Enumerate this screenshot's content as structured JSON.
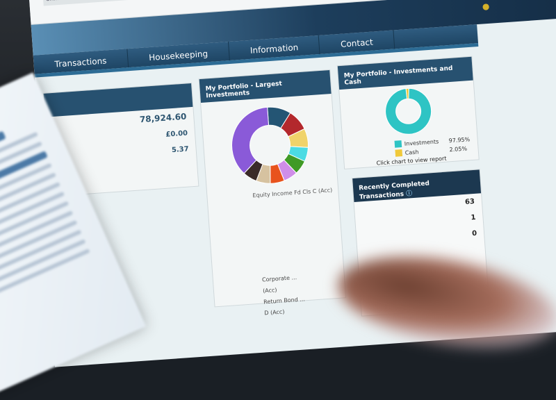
{
  "browser": {
    "address_fragment": "online"
  },
  "nav": {
    "items": [
      "Transactions",
      "Housekeeping",
      "Information",
      "Contact"
    ]
  },
  "summary": {
    "values": [
      "78,924.60",
      "£0.00",
      "5.37"
    ]
  },
  "largest": {
    "title": "My Portfolio - Largest Investments",
    "caption": "Equity Income Fd Cls C (Acc)",
    "slices": [
      {
        "color": "#8a5ad8",
        "share": 37
      },
      {
        "color": "#245574",
        "share": 10
      },
      {
        "color": "#b3282c",
        "share": 9
      },
      {
        "color": "#f0d36a",
        "share": 8
      },
      {
        "color": "#4bdbe3",
        "share": 6
      },
      {
        "color": "#3f9a25",
        "share": 6
      },
      {
        "color": "#cf8ee8",
        "share": 6
      },
      {
        "color": "#e8531d",
        "share": 6
      },
      {
        "color": "#d6c2a0",
        "share": 6
      },
      {
        "color": "#3a2b28",
        "share": 6
      }
    ],
    "list": [
      "Corporate ...",
      "(Acc)",
      "Return Bond ...",
      "D (Acc)"
    ]
  },
  "cash": {
    "title": "My Portfolio - Investments and Cash",
    "items": [
      {
        "label": "Investments",
        "pct": "97.95%",
        "color": "#2ec4c4",
        "share": 97.95
      },
      {
        "label": "Cash",
        "pct": "2.05%",
        "color": "#f0c93a",
        "share": 2.05
      }
    ],
    "hint": "Click chart to view report"
  },
  "recent": {
    "title": "Recently Completed Transactions",
    "values": [
      "63",
      "1",
      "0"
    ]
  }
}
